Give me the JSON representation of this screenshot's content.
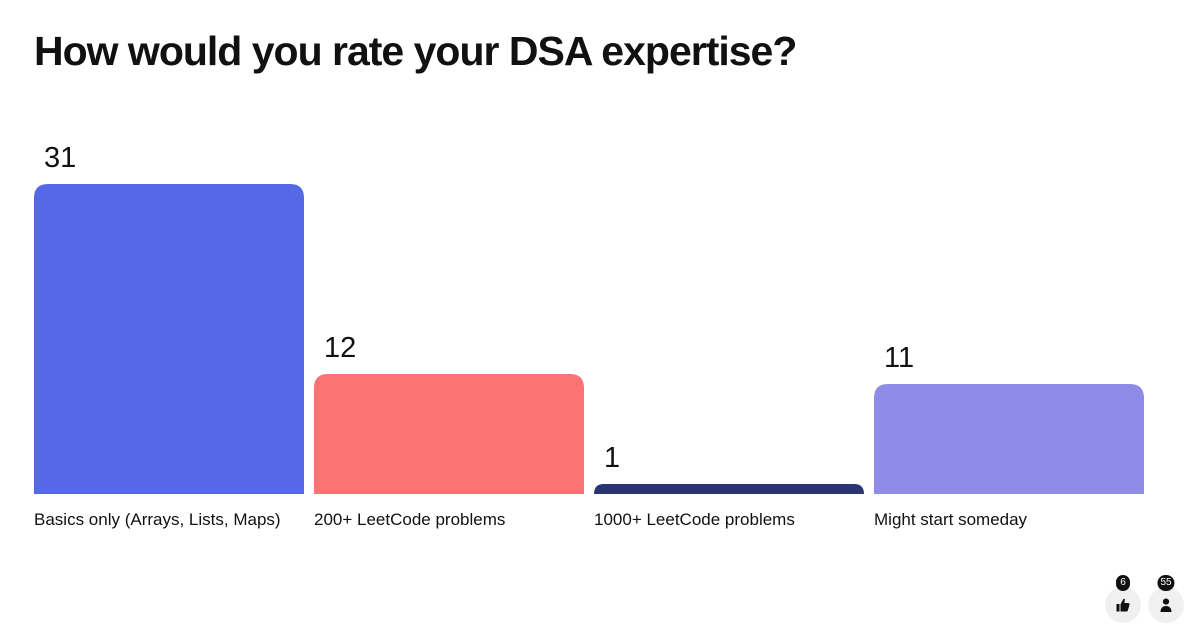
{
  "chart_data": {
    "type": "bar",
    "title": "How would you rate your DSA expertise?",
    "categories": [
      "Basics only (Arrays, Lists, Maps)",
      "200+ LeetCode problems",
      "1000+ LeetCode problems",
      "Might start someday"
    ],
    "values": [
      31,
      12,
      1,
      11
    ],
    "colors": [
      "#5569e6",
      "#fd7272",
      "#2b3472",
      "#8d8de9"
    ],
    "xlabel": "",
    "ylabel": "",
    "ylim": [
      0,
      31
    ],
    "grid": false
  },
  "footer": {
    "likes": {
      "count": "6",
      "icon": "thumbs-up-icon"
    },
    "participants": {
      "count": "55",
      "icon": "person-icon"
    }
  }
}
